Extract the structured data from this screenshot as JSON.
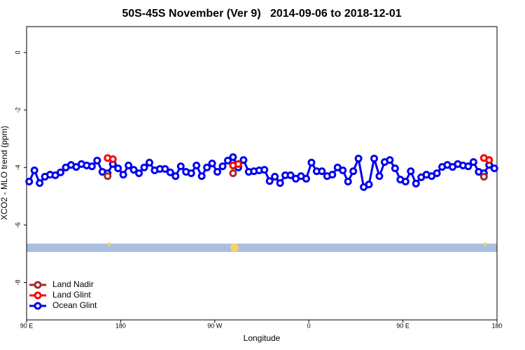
{
  "chart_data": {
    "type": "line",
    "title": "50S-45S November (Ver 9)   2014-09-06 to 2018-12-01",
    "x_label": "Longitude",
    "y_label": "XCO2 - MLO trend (ppm)",
    "xlim": [
      90,
      540
    ],
    "ylim": [
      -9.3,
      0.9
    ],
    "xticks": [
      {
        "value": 90,
        "label": "90 E"
      },
      180,
      {
        "value": 270,
        "label": "90 W"
      },
      {
        "value": 360,
        "label": "0"
      },
      {
        "value": 450,
        "label": "90 E"
      },
      {
        "value": 540,
        "label": "180"
      }
    ],
    "yticks": [
      0,
      -2,
      -4,
      -6,
      -8
    ],
    "legend": "bottom-left",
    "x": [
      92.5,
      97.5,
      102.5,
      107.5,
      112.5,
      117.5,
      122.5,
      127.5,
      132.5,
      137.5,
      142.5,
      147.5,
      152.5,
      157.5,
      162.5,
      167.5,
      172.5,
      177.5,
      182.5,
      187.5,
      192.5,
      197.5,
      202.5,
      207.5,
      212.5,
      217.5,
      222.5,
      227.5,
      232.5,
      237.5,
      242.5,
      247.5,
      252.5,
      257.5,
      262.5,
      267.5,
      272.5,
      277.5,
      282.5,
      287.5,
      292.5,
      297.5,
      302.5,
      307.5,
      312.5,
      317.5,
      322.5,
      327.5,
      332.5,
      337.5,
      342.5,
      347.5,
      352.5,
      357.5,
      362.5,
      367.5,
      372.5,
      377.5,
      382.5,
      387.5,
      392.5,
      397.5,
      402.5,
      407.5,
      412.5,
      417.5,
      422.5,
      427.5,
      432.5,
      437.5,
      442.5,
      447.5,
      452.5,
      457.5,
      462.5,
      467.5,
      472.5,
      477.5,
      482.5,
      487.5,
      492.5,
      497.5,
      502.5,
      507.5,
      512.5,
      517.5,
      522.5,
      527.5,
      532.5,
      537.5
    ],
    "series": [
      {
        "name": "Ocean Glint",
        "color": "#0000ee",
        "values": [
          -4.49,
          -4.1,
          -4.54,
          -4.32,
          -4.25,
          -4.27,
          -4.17,
          -4.0,
          -3.91,
          -3.98,
          -3.88,
          -3.93,
          -3.96,
          -3.76,
          -4.15,
          -4.2,
          -3.88,
          -4.03,
          -4.25,
          -3.93,
          -4.08,
          -4.2,
          -4.0,
          -3.83,
          -4.1,
          -4.05,
          -4.05,
          -4.17,
          -4.3,
          -3.96,
          -4.15,
          -4.2,
          -3.93,
          -4.3,
          -4.0,
          -3.86,
          -4.15,
          -3.96,
          -3.76,
          -3.64,
          -4.0,
          -3.74,
          -4.15,
          -4.13,
          -4.1,
          -4.08,
          -4.47,
          -4.32,
          -4.54,
          -4.27,
          -4.27,
          -4.39,
          -4.3,
          -4.39,
          -3.83,
          -4.13,
          -4.13,
          -4.3,
          -4.25,
          -4.0,
          -4.1,
          -4.49,
          -4.13,
          -3.69,
          -4.68,
          -4.59,
          -3.69,
          -4.3,
          -3.81,
          -3.74,
          -4.03,
          -4.42,
          -4.49,
          -4.13,
          -4.56,
          -4.34,
          -4.25,
          -4.3,
          -4.2,
          -3.98,
          -3.91,
          -3.98,
          -3.88,
          -3.93,
          -3.96,
          -3.81,
          -4.15,
          -4.2,
          -3.91,
          -4.03
        ]
      },
      {
        "name": "Land Nadir",
        "color": "#a52a2a",
        "values": [
          null,
          null,
          null,
          null,
          null,
          null,
          null,
          null,
          null,
          null,
          null,
          null,
          null,
          null,
          null,
          -4.3,
          null,
          null,
          null,
          null,
          null,
          null,
          null,
          null,
          null,
          null,
          null,
          null,
          null,
          null,
          null,
          null,
          null,
          null,
          null,
          null,
          null,
          null,
          null,
          -4.2,
          null,
          null,
          null,
          null,
          null,
          null,
          null,
          null,
          null,
          null,
          null,
          null,
          null,
          null,
          null,
          null,
          null,
          null,
          null,
          null,
          null,
          null,
          null,
          null,
          null,
          null,
          null,
          null,
          null,
          null,
          null,
          null,
          null,
          null,
          null,
          null,
          null,
          null,
          null,
          null,
          null,
          null,
          null,
          null,
          null,
          null,
          null,
          -4.32,
          null,
          null
        ]
      },
      {
        "name": "Land Glint",
        "color": "#ff0000",
        "values": [
          null,
          null,
          null,
          null,
          null,
          null,
          null,
          null,
          null,
          null,
          null,
          null,
          null,
          null,
          null,
          -3.67,
          -3.71,
          null,
          null,
          null,
          null,
          null,
          null,
          null,
          null,
          null,
          null,
          null,
          null,
          null,
          null,
          null,
          null,
          null,
          null,
          null,
          null,
          null,
          null,
          -3.93,
          -3.88,
          null,
          null,
          null,
          null,
          null,
          null,
          null,
          null,
          null,
          null,
          null,
          null,
          null,
          null,
          null,
          null,
          null,
          null,
          null,
          null,
          null,
          null,
          null,
          null,
          null,
          null,
          null,
          null,
          null,
          null,
          null,
          null,
          null,
          null,
          null,
          null,
          null,
          null,
          null,
          null,
          null,
          null,
          null,
          null,
          null,
          null,
          -3.67,
          -3.74,
          null
        ]
      }
    ]
  }
}
